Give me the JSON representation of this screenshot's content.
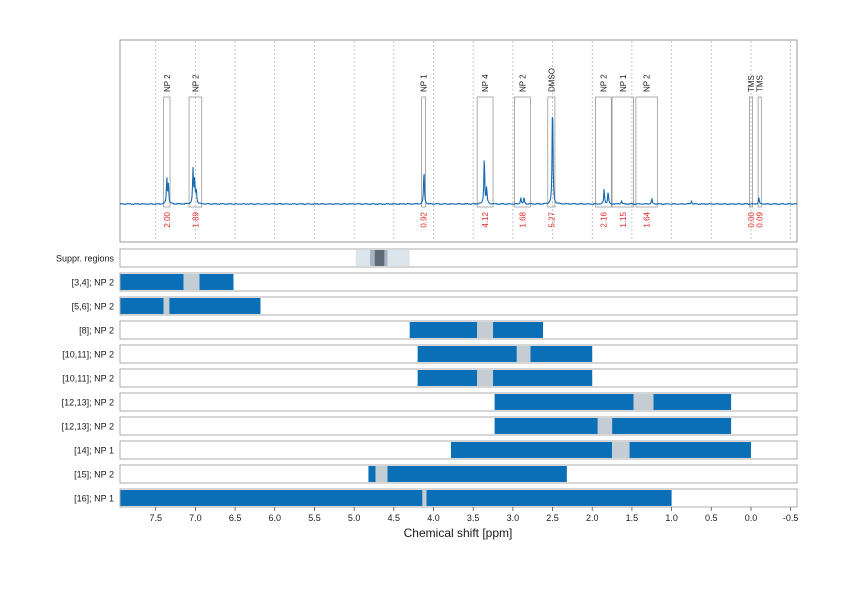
{
  "chart_data": {
    "type": "line",
    "xlabel": "Chemical shift [ppm]",
    "xlim": [
      7.95,
      -0.58
    ],
    "xticks": [
      7.5,
      7.0,
      6.5,
      6.0,
      5.5,
      5.0,
      4.5,
      4.0,
      3.5,
      3.0,
      2.5,
      2.0,
      1.5,
      1.0,
      0.5,
      0.0,
      -0.5
    ],
    "xtick_labels": [
      "7.5",
      "7.0",
      "6.5",
      "6.0",
      "5.5",
      "5.0",
      "4.5",
      "4.0",
      "3.5",
      "3.0",
      "2.5",
      "2.0",
      "1.5",
      "1.0",
      "0.5",
      "0.0",
      "-0.5"
    ],
    "colors": {
      "spectrum": "#1769b3",
      "bar": "#0b6fb8",
      "gap": "#c4ccd4",
      "integral_label": "#e32626",
      "region_light": "#dde5ec",
      "region_mid": "#a7b4c1",
      "region_dark": "#5f6b77"
    },
    "spectrum_peaks": [
      {
        "ppm": 7.36,
        "height": 0.24
      },
      {
        "ppm": 7.34,
        "height": 0.18
      },
      {
        "ppm": 7.03,
        "height": 0.32
      },
      {
        "ppm": 7.01,
        "height": 0.22
      },
      {
        "ppm": 6.99,
        "height": 0.14
      },
      {
        "ppm": 4.12,
        "height": 0.32
      },
      {
        "ppm": 3.36,
        "height": 0.45
      },
      {
        "ppm": 3.33,
        "height": 0.15
      },
      {
        "ppm": 2.9,
        "height": 0.06
      },
      {
        "ppm": 2.86,
        "height": 0.06
      },
      {
        "ppm": 2.5,
        "height": 1.0
      },
      {
        "ppm": 1.85,
        "height": 0.14
      },
      {
        "ppm": 1.8,
        "height": 0.12
      },
      {
        "ppm": 1.63,
        "height": 0.03
      },
      {
        "ppm": 1.25,
        "height": 0.05
      },
      {
        "ppm": 0.75,
        "height": 0.03
      },
      {
        "ppm": -0.1,
        "height": 0.06
      }
    ],
    "regions": [
      {
        "label": "NP 2",
        "from": 7.4,
        "to": 7.32,
        "integral": "2.00"
      },
      {
        "label": "NP 2",
        "from": 7.08,
        "to": 6.92,
        "integral": "1.89"
      },
      {
        "label": "NP 1",
        "from": 4.15,
        "to": 4.1,
        "integral": "0.92"
      },
      {
        "label": "NP 4",
        "from": 3.45,
        "to": 3.25,
        "integral": "4.12"
      },
      {
        "label": "NP 2",
        "from": 2.98,
        "to": 2.78,
        "integral": "1.68"
      },
      {
        "label": "DMSO",
        "from": 2.56,
        "to": 2.47,
        "integral": "5.27"
      },
      {
        "label": "NP 2",
        "from": 1.96,
        "to": 1.76,
        "integral": "2.16"
      },
      {
        "label": "NP 1",
        "from": 1.75,
        "to": 1.48,
        "integral": "1.15"
      },
      {
        "label": "NP 2",
        "from": 1.45,
        "to": 1.18,
        "integral": "1.64"
      },
      {
        "label": "TMS",
        "from": 0.02,
        "to": -0.02,
        "integral": "0.00"
      },
      {
        "label": "TMS",
        "from": -0.09,
        "to": -0.13,
        "integral": "0.09"
      }
    ],
    "suppressed": {
      "label": "Suppr. regions",
      "bands": [
        {
          "from": 4.98,
          "to": 4.3,
          "shade": "light"
        },
        {
          "from": 4.8,
          "to": 4.58,
          "shade": "mid"
        },
        {
          "from": 4.74,
          "to": 4.62,
          "shade": "dark"
        }
      ]
    },
    "rows": [
      {
        "label": "[3,4]; NP 2",
        "segments": [
          [
            7.95,
            7.15
          ],
          [
            6.95,
            6.52
          ]
        ],
        "gap": [
          7.15,
          6.95
        ]
      },
      {
        "label": "[5,6]; NP 2",
        "segments": [
          [
            7.95,
            7.4
          ],
          [
            7.33,
            6.18
          ]
        ],
        "gap": [
          7.4,
          7.33
        ]
      },
      {
        "label": "[8]; NP 2",
        "segments": [
          [
            4.3,
            3.45
          ],
          [
            3.25,
            2.62
          ]
        ],
        "gap": [
          3.45,
          3.25
        ]
      },
      {
        "label": "[10,11]; NP 2",
        "segments": [
          [
            4.2,
            2.95
          ],
          [
            2.78,
            2.0
          ]
        ],
        "gap": [
          2.95,
          2.78
        ]
      },
      {
        "label": "[10,11]; NP 2",
        "segments": [
          [
            4.2,
            3.45
          ],
          [
            3.25,
            2.0
          ]
        ],
        "gap": [
          3.45,
          3.25
        ]
      },
      {
        "label": "[12,13]; NP 2",
        "segments": [
          [
            3.23,
            1.48
          ],
          [
            1.23,
            0.25
          ]
        ],
        "gap": [
          1.48,
          1.23
        ]
      },
      {
        "label": "[12,13]; NP 2",
        "segments": [
          [
            3.23,
            1.93
          ],
          [
            1.75,
            0.25
          ]
        ],
        "gap": [
          1.93,
          1.75
        ]
      },
      {
        "label": "[14]; NP 1",
        "segments": [
          [
            3.78,
            1.75
          ],
          [
            1.53,
            0.0
          ]
        ],
        "gap": [
          1.75,
          1.53
        ]
      },
      {
        "label": "[15]; NP 2",
        "segments": [
          [
            4.82,
            4.73
          ],
          [
            4.58,
            2.32
          ]
        ],
        "gap": [
          4.73,
          4.58
        ]
      },
      {
        "label": "[16]; NP 1",
        "segments": [
          [
            7.95,
            4.14
          ],
          [
            4.09,
            1.0
          ]
        ],
        "gap": [
          4.14,
          4.09
        ]
      }
    ]
  }
}
